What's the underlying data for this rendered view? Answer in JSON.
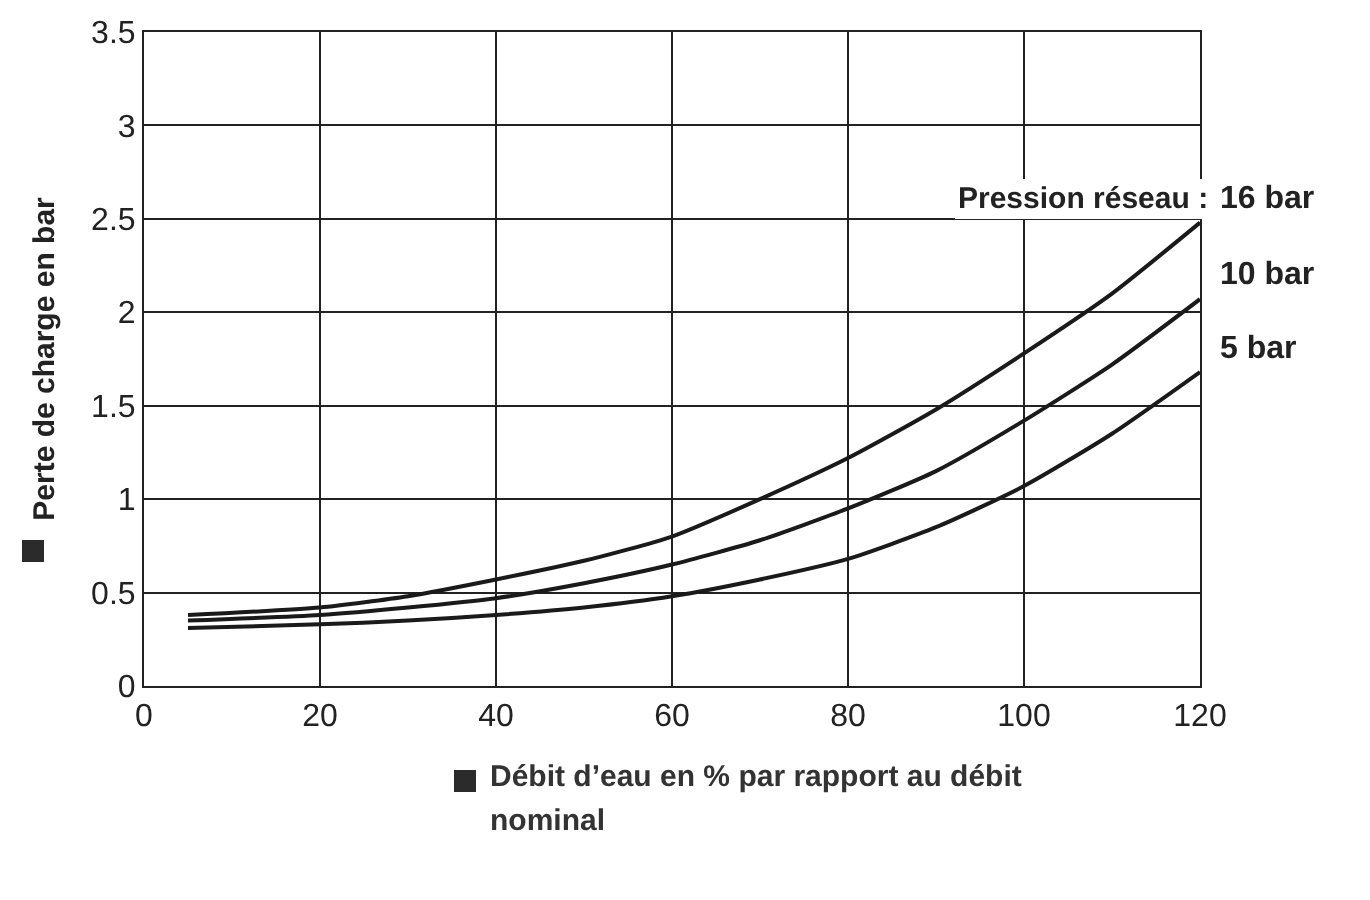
{
  "chart_data": {
    "type": "line",
    "xlabel": "Débit d’eau en % par rapport au débit nominal",
    "ylabel": "Perte de charge en bar",
    "legend_title": "Pression réseau :",
    "x": [
      5,
      20,
      30,
      40,
      50,
      60,
      70,
      80,
      90,
      100,
      110,
      120
    ],
    "series": [
      {
        "name": "16 bar",
        "color": "#1a1a1a",
        "values": [
          0.38,
          0.42,
          0.48,
          0.57,
          0.67,
          0.8,
          1.0,
          1.22,
          1.48,
          1.78,
          2.1,
          2.48
        ]
      },
      {
        "name": "10 bar",
        "color": "#1a1a1a",
        "values": [
          0.35,
          0.38,
          0.42,
          0.47,
          0.55,
          0.65,
          0.78,
          0.95,
          1.15,
          1.42,
          1.72,
          2.07
        ]
      },
      {
        "name": "5 bar",
        "color": "#1a1a1a",
        "values": [
          0.31,
          0.33,
          0.35,
          0.38,
          0.42,
          0.48,
          0.57,
          0.68,
          0.85,
          1.07,
          1.35,
          1.68
        ]
      }
    ],
    "xlim": [
      0,
      120
    ],
    "xticks": [
      0,
      20,
      40,
      60,
      80,
      100,
      120
    ],
    "ylim": [
      0,
      3.5
    ],
    "yticks": [
      0,
      0.5,
      1,
      1.5,
      2,
      2.5,
      3,
      3.5
    ],
    "grid": true,
    "legend": false,
    "marker": "none",
    "line_style": "solid"
  }
}
